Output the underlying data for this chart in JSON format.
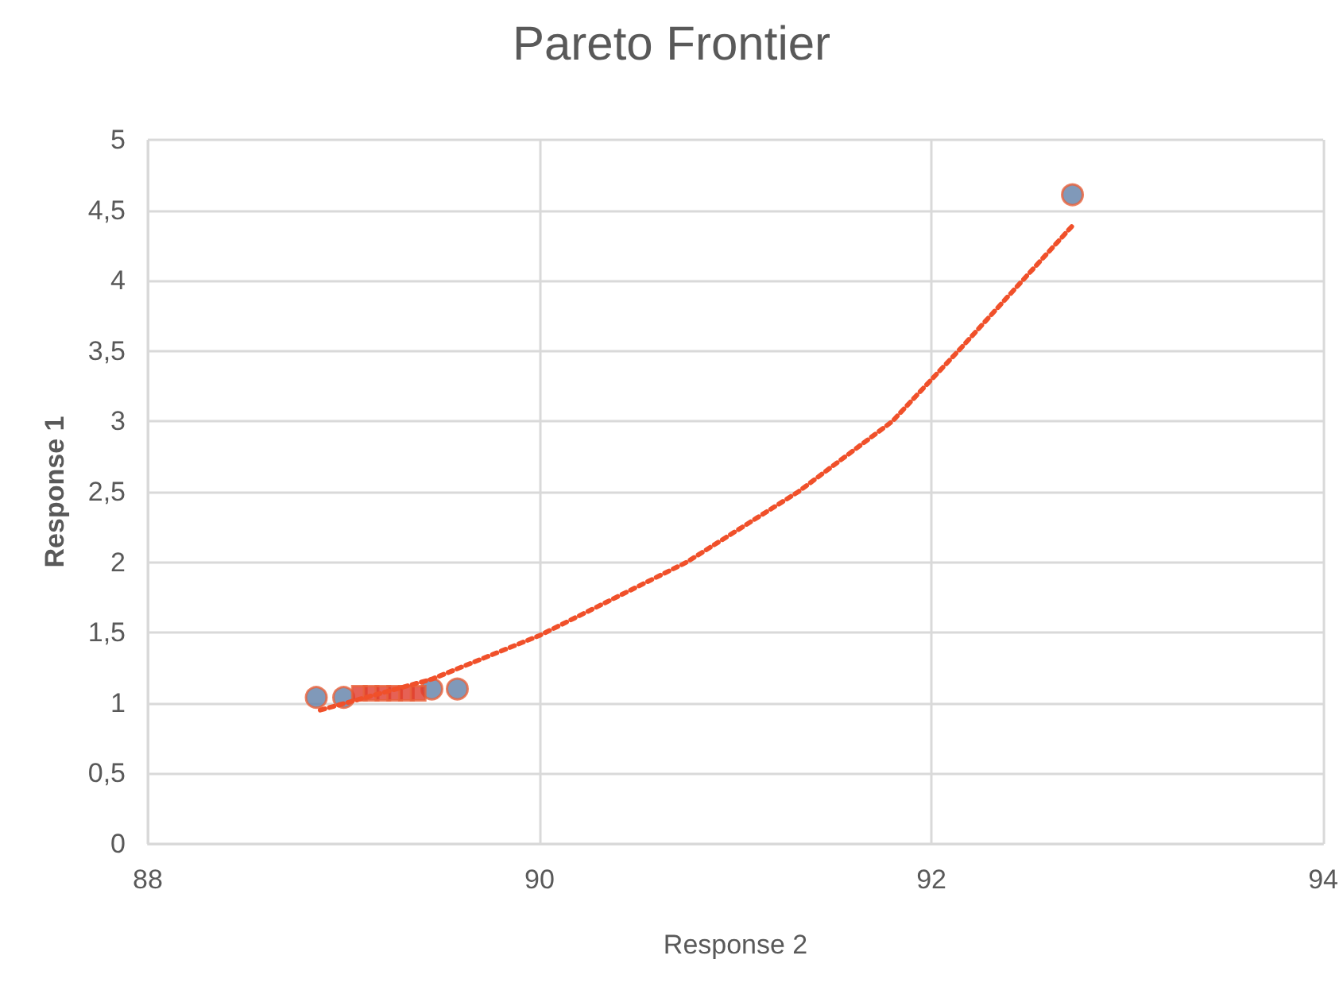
{
  "chart_data": {
    "type": "scatter",
    "title": "Pareto Frontier",
    "xlabel": "Response 2",
    "ylabel": "Response 1",
    "xlim": [
      88,
      94
    ],
    "xticks": [
      88,
      90,
      92,
      94
    ],
    "ylim": [
      0,
      5
    ],
    "yticks": [
      0,
      {
        "value": 0.5,
        "label": "0,5"
      },
      1,
      {
        "value": 1.5,
        "label": "1,5"
      },
      2,
      {
        "value": 2.5,
        "label": "2,5"
      },
      3,
      {
        "value": 3.5,
        "label": "3,5"
      },
      4,
      {
        "value": 4.5,
        "label": "4,5"
      },
      5
    ],
    "grid": true,
    "series": [
      {
        "type": "line",
        "color": "#f0502a",
        "marker": "none",
        "line_style": "dotted",
        "x": [
          88.88,
          89.45,
          90,
          90.75,
          91.32,
          91.8,
          92.15,
          92.72
        ],
        "values": [
          0.95,
          1.17,
          1.48,
          2.0,
          2.5,
          3.0,
          3.52,
          4.39
        ]
      },
      {
        "color": "#6080a8",
        "marker": "circle",
        "x": [
          88.86,
          89.0,
          89.45,
          89.58,
          92.72
        ],
        "values": [
          1.04,
          1.04,
          1.1,
          1.1,
          4.61
        ]
      },
      {
        "color": "#e03a2a",
        "marker": "square",
        "x": [
          89.08,
          89.14,
          89.2,
          89.26,
          89.32,
          89.38
        ],
        "values": [
          1.07,
          1.07,
          1.07,
          1.07,
          1.07,
          1.07
        ]
      }
    ]
  }
}
